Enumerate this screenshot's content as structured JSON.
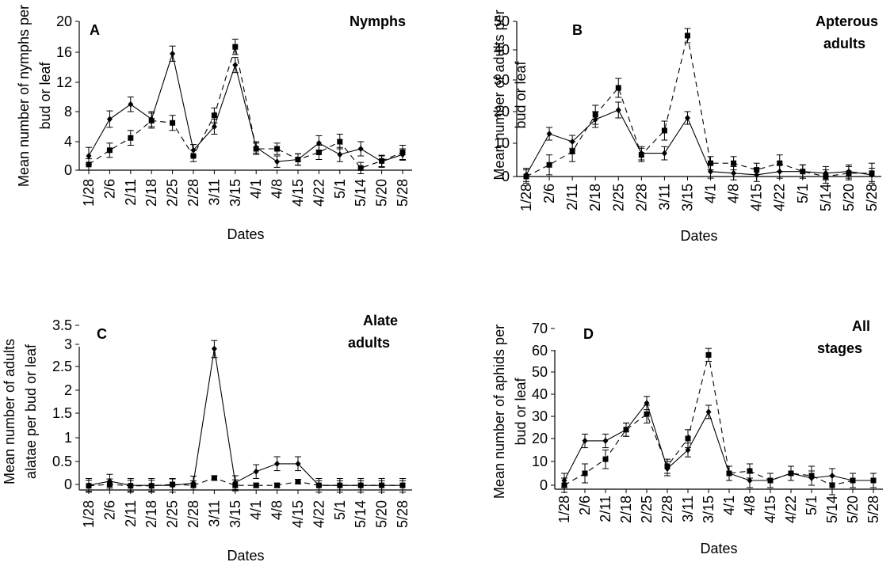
{
  "chart_data": [
    {
      "type": "line",
      "panel_letter": "A",
      "title": "Nymphs",
      "xlabel": "Dates",
      "ylabel": "Mean number of nymphs per bud or leaf",
      "ylim": [
        0,
        20
      ],
      "yticks": [
        "0",
        "4",
        "8",
        "12",
        "16",
        "20"
      ],
      "categories": [
        "1/28",
        "2/6",
        "2/11",
        "2/18",
        "2/25",
        "2/28",
        "3/11",
        "3/15",
        "4/1",
        "4/8",
        "4/15",
        "4/22",
        "5/1",
        "5/14",
        "5/20",
        "5/28"
      ],
      "series": [
        {
          "style": "solid",
          "marker": "diamond",
          "values": [
            2,
            7,
            9,
            7,
            15.8,
            2.8,
            6,
            14.3,
            3.2,
            1.2,
            1.5,
            3.8,
            2.2,
            3,
            1.2,
            2.2
          ],
          "errors": [
            1.2,
            1.1,
            1,
            1,
            1,
            0.8,
            1,
            1,
            0.8,
            0.8,
            0.8,
            1,
            1,
            1,
            0.8,
            0.8
          ]
        },
        {
          "style": "dashed",
          "marker": "square",
          "values": [
            0.8,
            2.8,
            4.5,
            6.8,
            6.5,
            2,
            7.5,
            16.7,
            3,
            3,
            1.5,
            2.5,
            4,
            0.3,
            1.3,
            2.5
          ],
          "errors": [
            0.8,
            1,
            1,
            1,
            1,
            0.8,
            1,
            1,
            0.8,
            0.8,
            0.8,
            1,
            1,
            0.8,
            0.8,
            1
          ]
        }
      ]
    },
    {
      "type": "line",
      "panel_letter": "B",
      "title": "Apterous adults",
      "xlabel": "Dates",
      "ylabel": "Mean number of adults per bud or leaf",
      "ylim": [
        0,
        50
      ],
      "yticks": [
        "0",
        "10",
        "20",
        "30",
        "40",
        "50"
      ],
      "categories": [
        "1/28",
        "2/6",
        "2/11",
        "2/18",
        "2/25",
        "2/28",
        "3/11",
        "3/15",
        "4/1",
        "4/8",
        "4/15",
        "4/22",
        "5/1",
        "5/14",
        "5/20",
        "5/28"
      ],
      "series": [
        {
          "style": "solid",
          "marker": "diamond",
          "values": [
            0.5,
            13,
            10.5,
            17.5,
            20.5,
            7,
            7,
            18,
            1.5,
            1,
            0.5,
            1.5,
            1.5,
            1,
            1.5,
            0.5
          ],
          "errors": [
            2,
            2,
            2,
            2.5,
            2.5,
            2,
            2,
            2,
            2,
            2,
            2,
            2,
            2,
            2,
            2,
            2
          ]
        },
        {
          "style": "dashed",
          "marker": "square",
          "values": [
            0,
            3.5,
            7.5,
            19,
            27.5,
            6.5,
            14,
            45,
            4,
            4,
            2,
            4,
            1.5,
            0,
            1,
            1
          ],
          "errors": [
            2,
            3,
            3,
            3,
            3,
            2,
            3,
            2.5,
            2,
            2,
            2,
            2.5,
            2,
            2,
            2,
            3
          ]
        }
      ]
    },
    {
      "type": "line",
      "panel_letter": "C",
      "title": "Alate adults",
      "xlabel": "Dates",
      "ylabel": "Mean number of adults alatae per bud or leaf",
      "ylim": [
        -0.2,
        3.5
      ],
      "yticks": [
        "0",
        "0.5",
        "1",
        "1.5",
        "2",
        "2.5",
        "3",
        "3.5"
      ],
      "categories": [
        "1/28",
        "2/6",
        "2/11",
        "2/18",
        "2/25",
        "2/28",
        "3/11",
        "3/15",
        "4/1",
        "4/8",
        "4/15",
        "4/22",
        "5/1",
        "5/14",
        "5/20",
        "5/28"
      ],
      "series": [
        {
          "style": "solid",
          "marker": "diamond",
          "values": [
            -0.02,
            0.07,
            -0.02,
            -0.02,
            -0.02,
            0.03,
            2.9,
            0.04,
            0.28,
            0.45,
            0.45,
            -0.02,
            -0.02,
            -0.02,
            -0.02,
            -0.02
          ],
          "errors": [
            0.15,
            0.15,
            0.15,
            0.15,
            0.15,
            0.15,
            0.2,
            0.15,
            0.15,
            0.15,
            0.15,
            0.15,
            0.15,
            0.15,
            0.15,
            0.15
          ]
        },
        {
          "style": "dashed",
          "marker": "square",
          "values": [
            -0.03,
            0,
            -0.03,
            -0.03,
            0,
            -0.02,
            0.14,
            -0.02,
            -0.02,
            -0.02,
            0.06,
            -0.02,
            -0.02,
            -0.02,
            -0.02,
            -0.02
          ],
          "errors": [
            0.12,
            0.12,
            0.12,
            0.12,
            0.12,
            0.1,
            0.05,
            0.12,
            0.05,
            0.05,
            0.05,
            0.1,
            0.1,
            0.1,
            0.1,
            0.1
          ]
        }
      ]
    },
    {
      "type": "line",
      "panel_letter": "D",
      "title": "All stages",
      "xlabel": "Dates",
      "ylabel": "Mean number of aphids per bud or leaf",
      "ylim": [
        0,
        70
      ],
      "yticks": [
        "0",
        "10",
        "20",
        "30",
        "40",
        "50",
        "60",
        "70"
      ],
      "categories": [
        "1/28",
        "2/6",
        "2/11",
        "2/18",
        "2/25",
        "2/28",
        "3/11",
        "3/15",
        "4/1",
        "4/8",
        "4/15",
        "4/22",
        "5/1",
        "5/14",
        "5/20",
        "5/28"
      ],
      "series": [
        {
          "style": "solid",
          "marker": "diamond",
          "values": [
            2,
            19,
            19,
            24,
            36,
            7,
            15,
            32,
            5,
            2,
            2,
            5,
            3,
            4,
            2,
            2
          ],
          "errors": [
            3,
            3,
            3,
            3,
            3,
            3,
            3,
            3,
            3,
            3,
            3,
            3,
            3,
            3,
            3,
            3
          ]
        },
        {
          "style": "dashed",
          "marker": "square",
          "values": [
            0,
            5,
            11,
            24,
            31,
            8,
            20,
            58,
            5,
            6,
            2,
            5,
            4,
            0,
            2,
            2
          ],
          "errors": [
            3,
            4,
            4,
            3,
            4,
            3,
            4,
            3,
            3,
            3,
            3,
            3,
            4,
            4,
            3,
            3
          ]
        }
      ]
    }
  ]
}
